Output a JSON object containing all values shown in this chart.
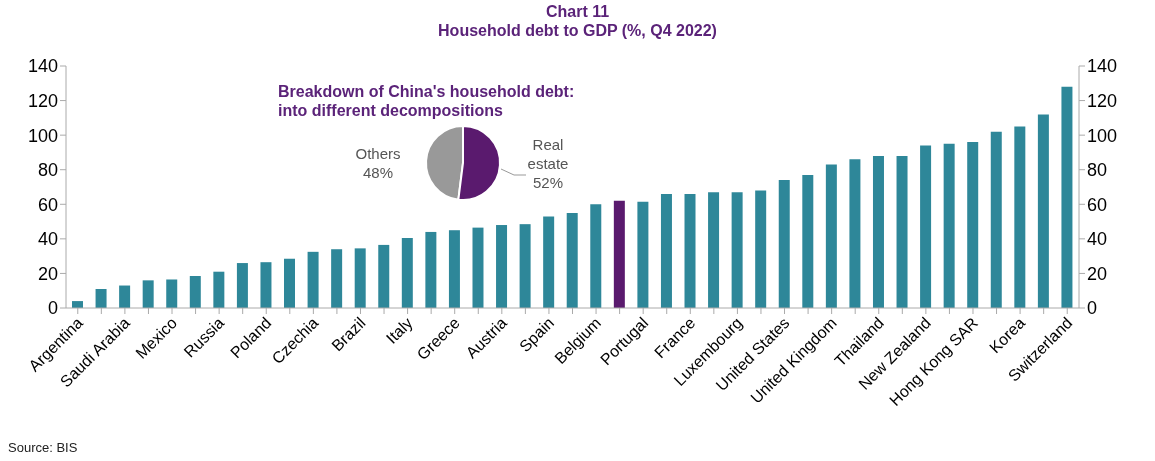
{
  "chart_data": [
    {
      "type": "bar",
      "title": "Chart 11",
      "subtitle": "Household debt to GDP (%, Q4 2022)",
      "categories": [
        "Argentina",
        null,
        "Saudi Arabia",
        null,
        "Mexico",
        null,
        "Russia",
        null,
        "Poland",
        null,
        "Czechia",
        null,
        "Brazil",
        null,
        "Italy",
        null,
        "Greece",
        null,
        "Austria",
        null,
        "Spain",
        null,
        "Belgium",
        null,
        "Portugal",
        null,
        "France",
        null,
        "Luxembourg",
        null,
        "United States",
        null,
        "United Kingdom",
        null,
        "Thailand",
        null,
        "New Zealand",
        null,
        "Hong Kong SAR",
        null,
        "Korea",
        null,
        "Switzerland"
      ],
      "values": [
        4,
        11,
        13,
        16,
        16.5,
        18.5,
        21,
        26,
        26.5,
        28.5,
        32.5,
        34,
        34.5,
        36.5,
        40.5,
        44,
        45,
        46.5,
        48,
        48.5,
        53,
        55,
        60,
        62,
        61.5,
        66,
        66,
        67,
        67,
        68,
        74,
        77,
        83,
        86,
        88,
        88,
        94,
        95,
        96,
        102,
        105,
        112,
        128
      ],
      "colors": [
        "#2e8799",
        "#2e8799",
        "#2e8799",
        "#2e8799",
        "#2e8799",
        "#2e8799",
        "#2e8799",
        "#2e8799",
        "#2e8799",
        "#2e8799",
        "#2e8799",
        "#2e8799",
        "#2e8799",
        "#2e8799",
        "#2e8799",
        "#2e8799",
        "#2e8799",
        "#2e8799",
        "#2e8799",
        "#2e8799",
        "#2e8799",
        "#2e8799",
        "#2e8799",
        "#5a1a6e",
        "#2e8799",
        "#2e8799",
        "#2e8799",
        "#2e8799",
        "#2e8799",
        "#2e8799",
        "#2e8799",
        "#2e8799",
        "#2e8799",
        "#2e8799",
        "#2e8799",
        "#2e8799",
        "#2e8799",
        "#2e8799",
        "#2e8799",
        "#2e8799",
        "#2e8799",
        "#2e8799",
        "#2e8799"
      ],
      "ylim": [
        0,
        140
      ],
      "yticks": [
        0,
        20,
        40,
        60,
        80,
        100,
        120,
        140
      ],
      "y2lim": [
        0,
        140
      ],
      "y2ticks": [
        0,
        20,
        40,
        60,
        80,
        100,
        120,
        140
      ],
      "grid": false,
      "annotations": [
        "Source: BIS"
      ]
    },
    {
      "type": "pie",
      "title": "Breakdown of China's household debt:\ninto different decompositions",
      "categories": [
        "Others",
        "Real estate"
      ],
      "values": [
        48,
        52
      ],
      "colors": [
        "#999999",
        "#5a1a6e"
      ],
      "value_labels": [
        "48%",
        "52%"
      ]
    }
  ]
}
